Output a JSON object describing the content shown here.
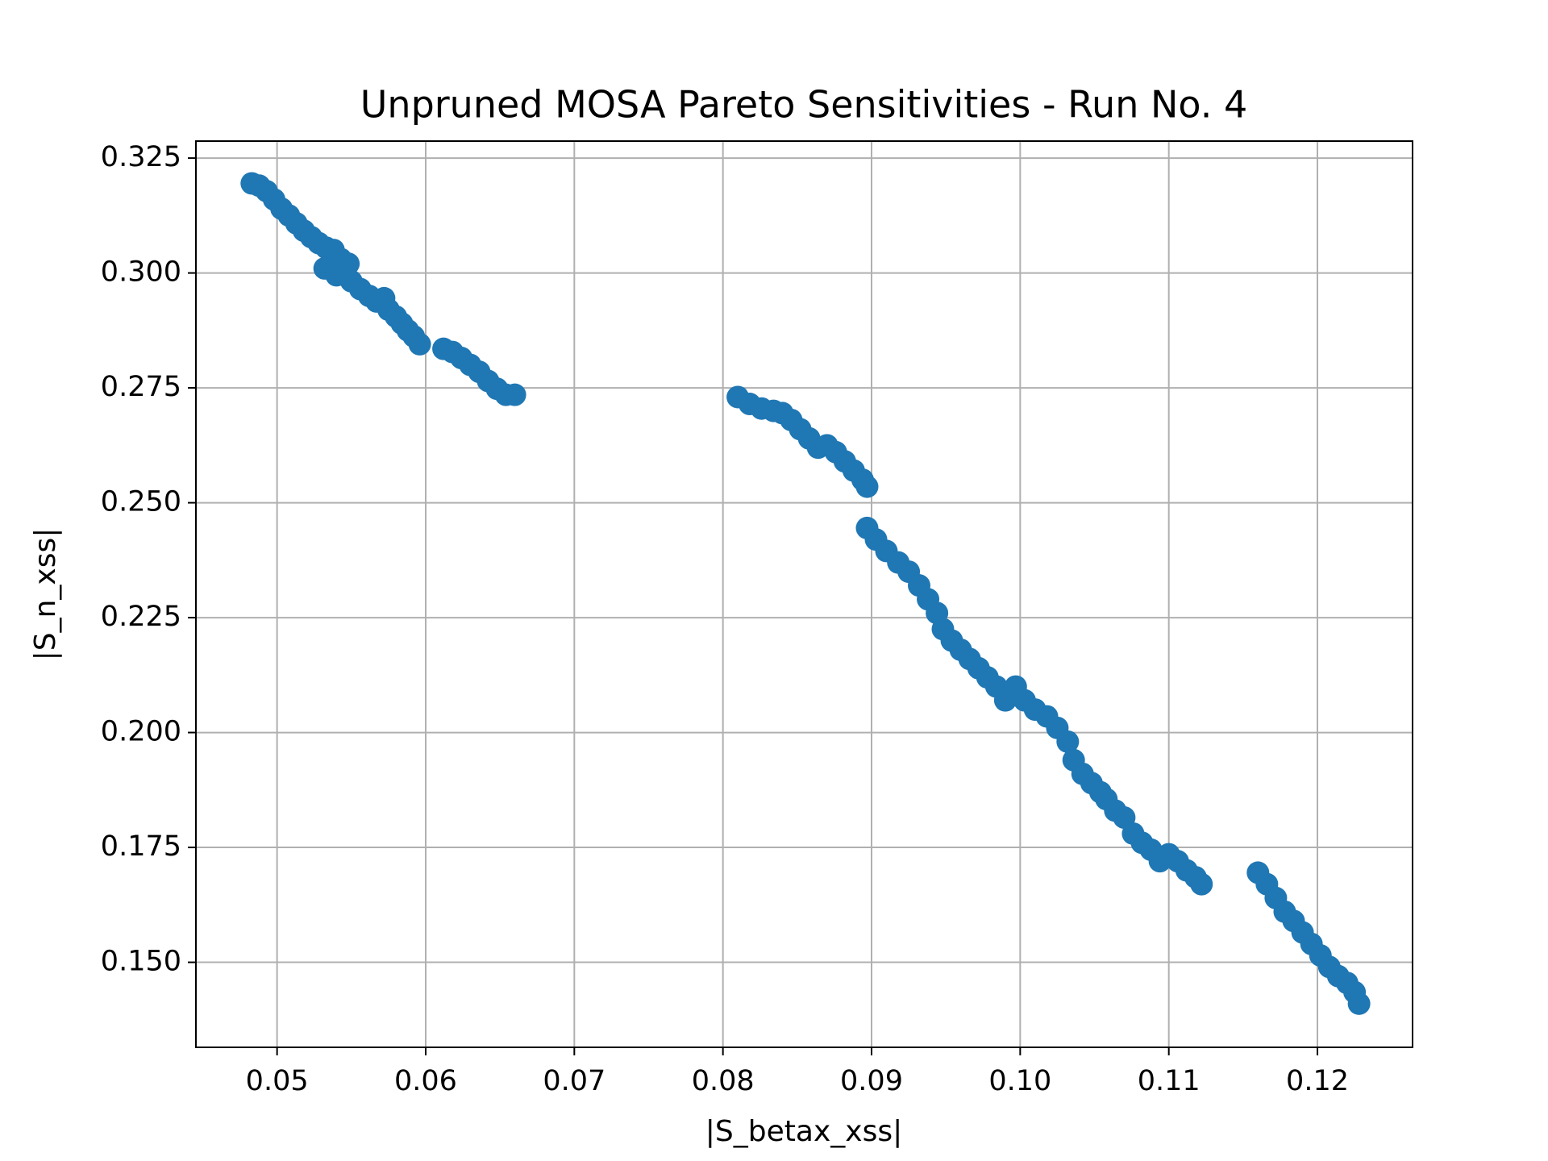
{
  "chart_data": {
    "type": "scatter",
    "title": "Unpruned MOSA Pareto Sensitivities - Run No. 4",
    "x_label": "|S_betax_xss|",
    "y_label": "|S_n_xss|",
    "color": "#1f77b4",
    "grid": true,
    "xlim": [
      0.04454,
      0.1264
    ],
    "ylim": [
      0.1315,
      0.3287
    ],
    "xticks": [
      0.05,
      0.06,
      0.07,
      0.08,
      0.09,
      {
        "value": 0.1,
        "label": "0.10"
      },
      0.11,
      0.12
    ],
    "yticks": [
      {
        "value": 0.15,
        "label": "0.150"
      },
      0.175,
      {
        "value": 0.2,
        "label": "0.200"
      },
      0.225,
      {
        "value": 0.25,
        "label": "0.250"
      },
      0.275,
      {
        "value": 0.3,
        "label": "0.300"
      },
      0.325
    ],
    "x": [
      0.0483,
      0.0488,
      0.0493,
      0.0498,
      0.0503,
      0.0508,
      0.0513,
      0.0518,
      0.0523,
      0.0528,
      0.0533,
      0.0538,
      0.0543,
      0.0548,
      0.0532,
      0.054,
      0.055,
      0.0556,
      0.0562,
      0.0567,
      0.0572,
      0.0575,
      0.058,
      0.0584,
      0.0588,
      0.0592,
      0.0596,
      0.0612,
      0.0618,
      0.0624,
      0.063,
      0.0636,
      0.0642,
      0.0648,
      0.0654,
      0.066,
      0.081,
      0.0818,
      0.0826,
      0.0834,
      0.084,
      0.0846,
      0.0852,
      0.0858,
      0.0864,
      0.087,
      0.0876,
      0.0882,
      0.0888,
      0.0894,
      0.0897,
      0.0897,
      0.0903,
      0.091,
      0.0918,
      0.0925,
      0.0932,
      0.0938,
      0.0944,
      0.0948,
      0.0954,
      0.096,
      0.0966,
      0.0972,
      0.0978,
      0.0984,
      0.099,
      0.0997,
      0.1003,
      0.101,
      0.1018,
      0.1025,
      0.1032,
      0.1036,
      0.1042,
      0.1048,
      0.1054,
      0.1058,
      0.1064,
      0.107,
      0.1076,
      0.1082,
      0.1088,
      0.1094,
      0.11,
      0.1106,
      0.1112,
      0.1118,
      0.1122,
      0.116,
      0.1166,
      0.1172,
      0.1178,
      0.1184,
      0.119,
      0.1196,
      0.1202,
      0.1208,
      0.1214,
      0.122,
      0.1225,
      0.1228
    ],
    "values": [
      0.3195,
      0.319,
      0.3178,
      0.316,
      0.314,
      0.3125,
      0.3108,
      0.3092,
      0.3078,
      0.3065,
      0.3055,
      0.305,
      0.303,
      0.302,
      0.301,
      0.2995,
      0.2982,
      0.2965,
      0.295,
      0.2938,
      0.2945,
      0.292,
      0.2905,
      0.289,
      0.2875,
      0.2862,
      0.2845,
      0.2835,
      0.2828,
      0.2815,
      0.28,
      0.2785,
      0.2765,
      0.2748,
      0.2735,
      0.2735,
      0.273,
      0.2715,
      0.2705,
      0.27,
      0.2695,
      0.268,
      0.266,
      0.264,
      0.262,
      0.2625,
      0.261,
      0.259,
      0.257,
      0.255,
      0.2535,
      0.2445,
      0.242,
      0.2395,
      0.237,
      0.235,
      0.232,
      0.229,
      0.226,
      0.2225,
      0.22,
      0.218,
      0.216,
      0.214,
      0.212,
      0.21,
      0.207,
      0.21,
      0.207,
      0.205,
      0.2035,
      0.201,
      0.198,
      0.194,
      0.191,
      0.189,
      0.187,
      0.1855,
      0.183,
      0.1815,
      0.178,
      0.176,
      0.1745,
      0.172,
      0.1735,
      0.172,
      0.17,
      0.1685,
      0.167,
      0.1695,
      0.167,
      0.164,
      0.161,
      0.159,
      0.1565,
      0.154,
      0.1515,
      0.149,
      0.147,
      0.1455,
      0.1435,
      0.141
    ]
  }
}
